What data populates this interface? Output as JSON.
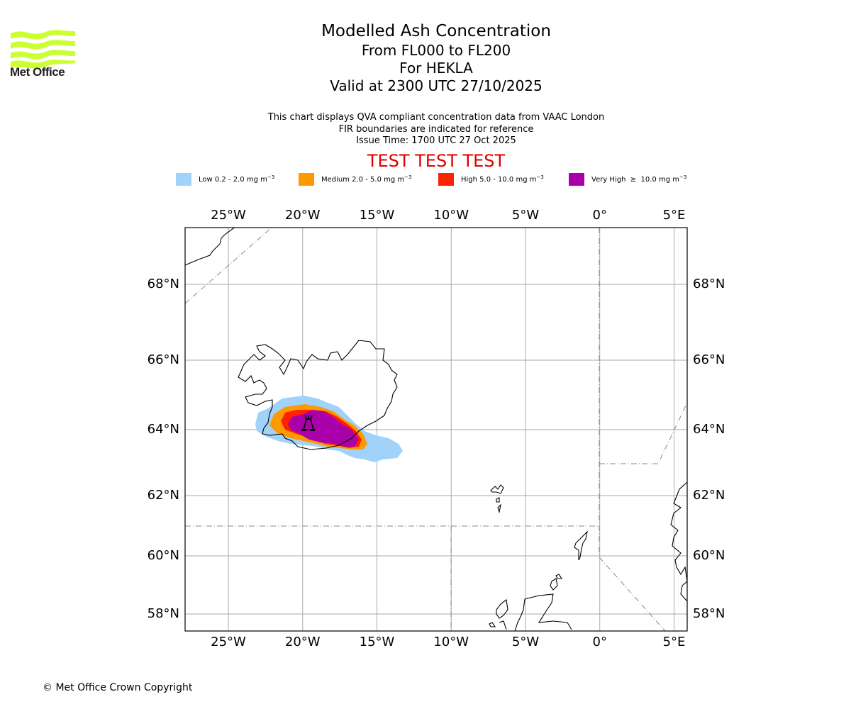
{
  "logo": {
    "text": "Met Office",
    "icon": "met-office-waves-logo",
    "color": "#ccff33"
  },
  "header": {
    "title": "Modelled Ash Concentration",
    "levels": "From FL000 to FL200",
    "volcano": "For HEKLA",
    "valid": "Valid at 2300 UTC 27/10/2025"
  },
  "subtitle": {
    "line1": "This chart displays QVA compliant concentration data from VAAC London",
    "line2": "FIR boundaries are indicated for reference",
    "line3": "Issue Time: 1700 UTC 27 Oct 2025"
  },
  "banner": {
    "text": "TEST TEST TEST",
    "color": "#e00000"
  },
  "legend": [
    {
      "label": "Low 0.2 - 2.0 mg m",
      "exp": "−3",
      "color": "#a0d2fa"
    },
    {
      "label": "Medium 2.0 - 5.0 mg m",
      "exp": "−3",
      "color": "#ff9900"
    },
    {
      "label": "High 5.0 - 10.0 mg m",
      "exp": "−3",
      "color": "#ff2200"
    },
    {
      "label": "Very High  ≥  10.0 mg m",
      "exp": "−3",
      "color": "#aa00aa"
    }
  ],
  "map": {
    "lon_range": [
      -28,
      6
    ],
    "lat_range": [
      57.5,
      69.5
    ],
    "lon_ticks": [
      {
        "value": -25,
        "label": "25°W"
      },
      {
        "value": -20,
        "label": "20°W"
      },
      {
        "value": -15,
        "label": "15°W"
      },
      {
        "value": -10,
        "label": "10°W"
      },
      {
        "value": -5,
        "label": "5°W"
      },
      {
        "value": 0,
        "label": "0°"
      },
      {
        "value": 5,
        "label": "5°E"
      }
    ],
    "lat_ticks": [
      {
        "value": 68,
        "label": "68°N"
      },
      {
        "value": 66,
        "label": "66°N"
      },
      {
        "value": 64,
        "label": "64°N"
      },
      {
        "value": 62,
        "label": "62°N"
      },
      {
        "value": 60,
        "label": "60°N"
      },
      {
        "value": 58,
        "label": "58°N"
      }
    ],
    "volcano_marker": {
      "name": "HEKLA",
      "lon": -19.7,
      "lat": 64.0,
      "icon": "volcano-icon"
    },
    "grid_color": "#aaaaaa",
    "fir_color": "#888888"
  },
  "footer": {
    "copyright": "© Met Office Crown Copyright"
  }
}
